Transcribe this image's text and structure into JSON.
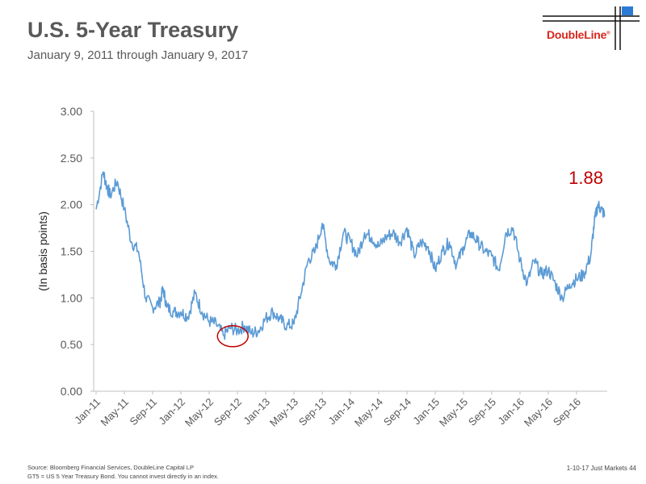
{
  "header": {
    "title": "U.S. 5-Year Treasury",
    "subtitle": "January 9, 2011 through January 9, 2017",
    "logo_text": "DoubleLine",
    "logo_mark": "®"
  },
  "footer": {
    "source": "Source: Bloomberg Financial Services, DoubleLine Capital LP",
    "note": "GT5 = US 5 Year Treasury Bond.  You cannot invest directly in an index.",
    "page": "1-10-17 Just Markets   44"
  },
  "colors": {
    "line": "#5b9bd5",
    "annotation": "#c00000",
    "logo_red": "#d9261c",
    "logo_blue": "#2b7bd6"
  },
  "chart_data": {
    "type": "line",
    "title": "U.S. 5-Year Treasury",
    "ylabel": "(In basis points)",
    "xlabel": "",
    "ylim": [
      0,
      3
    ],
    "yticks": [
      "0.00",
      "0.50",
      "1.00",
      "1.50",
      "2.00",
      "2.50",
      "3.00"
    ],
    "x_ticks": [
      "Jan-11",
      "May-11",
      "Sep-11",
      "Jan-12",
      "May-12",
      "Sep-12",
      "Jan-13",
      "May-13",
      "Sep-13",
      "Jan-14",
      "May-14",
      "Sep-14",
      "Jan-15",
      "May-15",
      "Sep-15",
      "Jan-16",
      "May-16",
      "Sep-16"
    ],
    "last_value_label": "1.88",
    "circle_annotation": {
      "x": "Aug-12",
      "y": 0.59
    },
    "grid": false,
    "series": [
      {
        "x": [
          "Jan-11",
          "Feb-11",
          "Feb-11",
          "Mar-11",
          "Apr-11",
          "May-11",
          "Jun-11",
          "Jul-11",
          "Aug-11",
          "Sep-11",
          "Oct-11",
          "Oct-11",
          "Nov-11",
          "Dec-11",
          "Jan-12",
          "Feb-12",
          "Mar-12",
          "Apr-12",
          "May-12",
          "Jun-12",
          "Jul-12",
          "Aug-12",
          "Sep-12",
          "Oct-12",
          "Nov-12",
          "Dec-12",
          "Jan-13",
          "Feb-13",
          "Mar-13",
          "Apr-13",
          "May-13",
          "Jun-13",
          "Jul-13",
          "Aug-13",
          "Sep-13",
          "Oct-13",
          "Nov-13",
          "Dec-13",
          "Jan-14",
          "Feb-14",
          "Mar-14",
          "Apr-14",
          "May-14",
          "Jun-14",
          "Jul-14",
          "Aug-14",
          "Sep-14",
          "Oct-14",
          "Nov-14",
          "Dec-14",
          "Jan-15",
          "Feb-15",
          "Mar-15",
          "Apr-15",
          "May-15",
          "Jun-15",
          "Jul-15",
          "Aug-15",
          "Sep-15",
          "Oct-15",
          "Nov-15",
          "Dec-15",
          "Jan-16",
          "Feb-16",
          "Mar-16",
          "Apr-16",
          "May-16",
          "Jun-16",
          "Jul-16",
          "Aug-16",
          "Sep-16",
          "Oct-16",
          "Nov-16",
          "Nov-16",
          "Dec-16",
          "Dec-16",
          "Jan-17"
        ],
        "values": [
          1.95,
          2.35,
          2.2,
          2.1,
          2.25,
          1.95,
          1.6,
          1.5,
          1.0,
          0.9,
          0.95,
          1.1,
          0.9,
          0.85,
          0.85,
          0.8,
          1.05,
          0.85,
          0.75,
          0.72,
          0.6,
          0.68,
          0.65,
          0.7,
          0.62,
          0.65,
          0.78,
          0.85,
          0.77,
          0.7,
          0.72,
          1.05,
          1.4,
          1.5,
          1.8,
          1.4,
          1.35,
          1.7,
          1.6,
          1.45,
          1.7,
          1.65,
          1.55,
          1.65,
          1.7,
          1.6,
          1.75,
          1.45,
          1.6,
          1.55,
          1.3,
          1.5,
          1.6,
          1.35,
          1.55,
          1.7,
          1.6,
          1.5,
          1.45,
          1.3,
          1.7,
          1.75,
          1.4,
          1.15,
          1.4,
          1.25,
          1.3,
          1.15,
          1.0,
          1.15,
          1.2,
          1.25,
          1.45,
          1.8,
          2.0,
          1.95,
          1.88
        ]
      }
    ]
  }
}
